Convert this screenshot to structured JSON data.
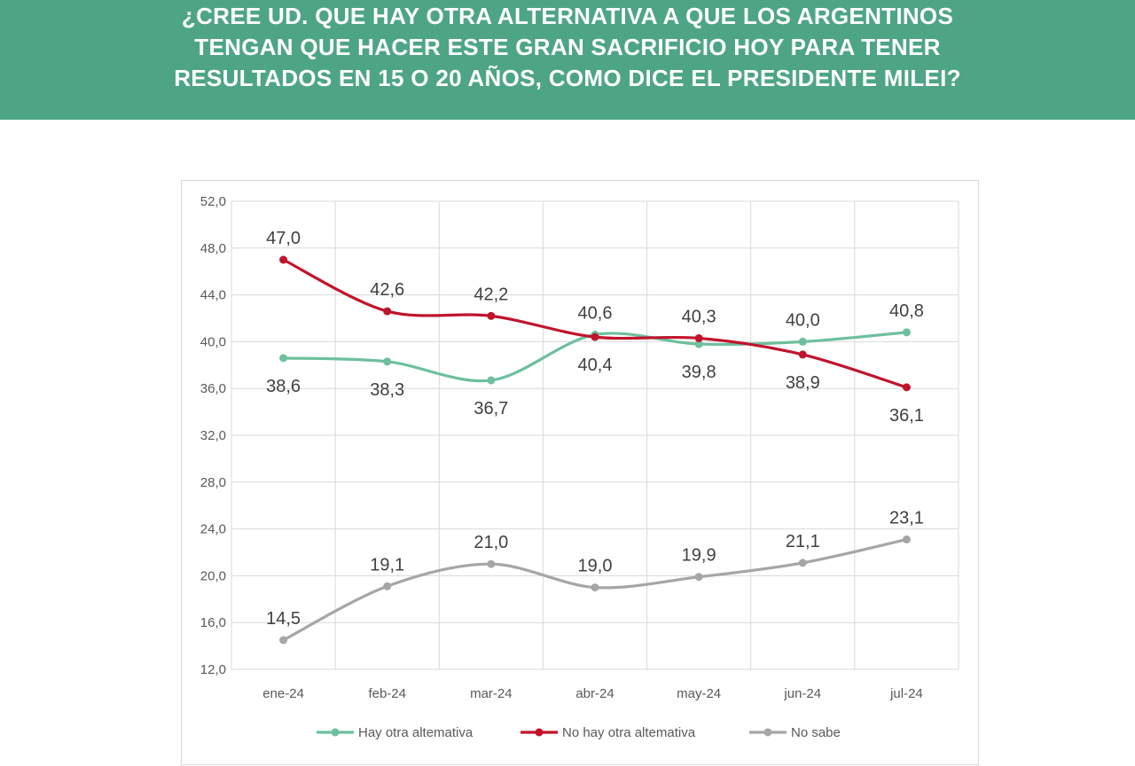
{
  "header": {
    "title_lines": [
      "¿CREE UD. QUE HAY OTRA ALTERNATIVA A QUE LOS ARGENTINOS",
      "TENGAN QUE HACER ESTE GRAN SACRIFICIO HOY PARA TENER",
      "RESULTADOS EN 15 O 20 AÑOS, COMO DICE EL PRESIDENTE MILEI?"
    ],
    "background_color": "#4ea585",
    "text_color": "#ffffff"
  },
  "chart_data": {
    "type": "line",
    "title": "¿CREE UD. QUE HAY OTRA ALTERNATIVA A QUE LOS ARGENTINOS TENGAN QUE HACER ESTE GRAN SACRIFICIO HOY PARA TENER RESULTADOS EN 15 O 20 AÑOS, COMO DICE EL PRESIDENTE MILEI?",
    "categories": [
      "ene-24",
      "feb-24",
      "mar-24",
      "abr-24",
      "may-24",
      "jun-24",
      "jul-24"
    ],
    "y_ticks": [
      "52,0",
      "48,0",
      "44,0",
      "40,0",
      "36,0",
      "32,0",
      "28,0",
      "24,0",
      "20,0",
      "16,0",
      "12,0"
    ],
    "ylim": [
      12,
      52
    ],
    "grid": true,
    "legend_position": "bottom",
    "series": [
      {
        "name": "Hay otra altemativa",
        "color": "#6dbf9e",
        "values": [
          38.6,
          38.3,
          36.7,
          40.6,
          39.8,
          40.0,
          40.8
        ],
        "labels": [
          "38,6",
          "38,3",
          "36,7",
          "40,6",
          "39,8",
          "40,0",
          "40,8"
        ]
      },
      {
        "name": "No hay otra altemativa",
        "color": "#c0142c",
        "values": [
          47.0,
          42.6,
          42.2,
          40.4,
          40.3,
          38.9,
          36.1
        ],
        "labels": [
          "47,0",
          "42,6",
          "42,2",
          "40,4",
          "40,3",
          "38,9",
          "36,1"
        ]
      },
      {
        "name": "No sabe",
        "color": "#a6a6a6",
        "values": [
          14.5,
          19.1,
          21.0,
          19.0,
          19.9,
          21.1,
          23.1
        ],
        "labels": [
          "14,5",
          "19,1",
          "21,0",
          "19,0",
          "19,9",
          "21,1",
          "23,1"
        ]
      }
    ]
  }
}
